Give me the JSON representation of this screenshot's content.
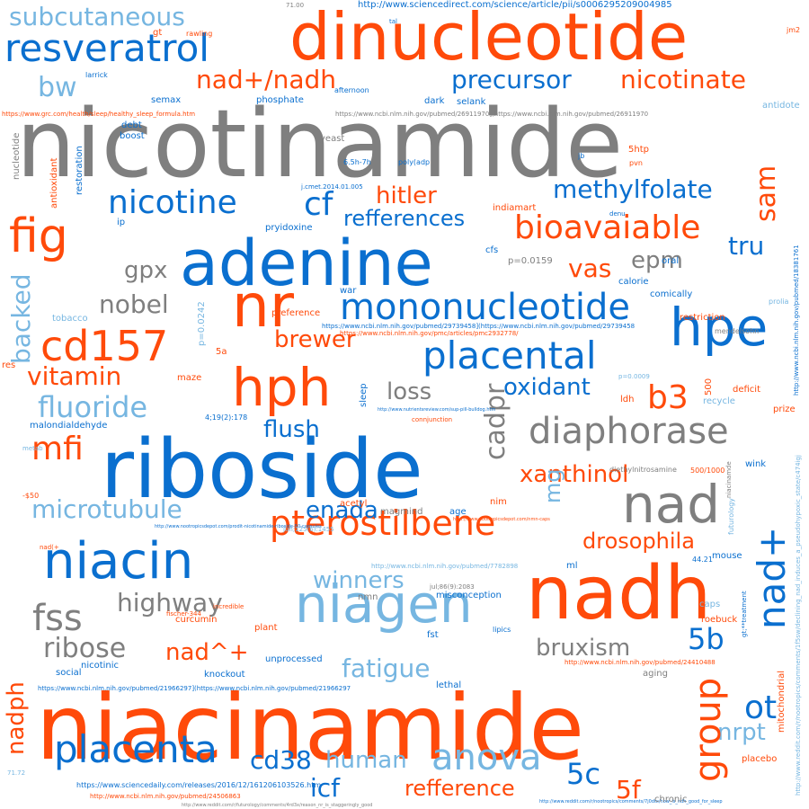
{
  "palette": {
    "gray": "#7f7f7f",
    "blue": "#0a6fcf",
    "lightblue": "#76b6e1",
    "orange": "#ff4a0a"
  },
  "words": [
    {
      "text": "nicotinamide",
      "color": "gray"
    },
    {
      "text": "riboside",
      "color": "blue"
    },
    {
      "text": "niacinamide",
      "color": "orange"
    },
    {
      "text": "dinucleotide",
      "color": "orange"
    },
    {
      "text": "adenine",
      "color": "blue"
    },
    {
      "text": "nadh",
      "color": "orange"
    },
    {
      "text": "nr",
      "color": "orange"
    },
    {
      "text": "hph",
      "color": "orange"
    },
    {
      "text": "hpe",
      "color": "blue"
    },
    {
      "text": "niagen",
      "color": "lightblue"
    },
    {
      "text": "nad",
      "color": "gray"
    },
    {
      "text": "niacin",
      "color": "blue"
    },
    {
      "text": "fig",
      "color": "orange"
    },
    {
      "text": "cd157",
      "color": "orange"
    },
    {
      "text": "mononucleotide",
      "color": "blue"
    },
    {
      "text": "diaphorase",
      "color": "gray"
    },
    {
      "text": "placental",
      "color": "blue"
    },
    {
      "text": "resveratrol",
      "color": "blue"
    },
    {
      "text": "pterostilbene",
      "color": "orange"
    },
    {
      "text": "anova",
      "color": "lightblue"
    },
    {
      "text": "placenta",
      "color": "blue"
    },
    {
      "text": "nicotine",
      "color": "blue"
    },
    {
      "text": "bioavaiable",
      "color": "orange"
    },
    {
      "text": "fss",
      "color": "gray"
    },
    {
      "text": "cf",
      "color": "blue"
    },
    {
      "text": "mfi",
      "color": "orange"
    },
    {
      "text": "b3",
      "color": "orange"
    },
    {
      "text": "ot",
      "color": "blue"
    },
    {
      "text": "5b",
      "color": "blue"
    },
    {
      "text": "nad+/nadh",
      "color": "orange"
    },
    {
      "text": "precursor",
      "color": "blue"
    },
    {
      "text": "nicotinate",
      "color": "orange"
    },
    {
      "text": "methylfolate",
      "color": "blue"
    },
    {
      "text": "microtubule",
      "color": "lightblue"
    },
    {
      "text": "highway",
      "color": "gray"
    },
    {
      "text": "ribose",
      "color": "gray"
    },
    {
      "text": "fluoride",
      "color": "lightblue"
    },
    {
      "text": "vitamin",
      "color": "orange"
    },
    {
      "text": "oxidant",
      "color": "blue"
    },
    {
      "text": "xanthinol",
      "color": "orange"
    },
    {
      "text": "drosophila",
      "color": "orange"
    },
    {
      "text": "fatigue",
      "color": "lightblue"
    },
    {
      "text": "bruxism",
      "color": "gray"
    },
    {
      "text": "winners",
      "color": "lightblue"
    },
    {
      "text": "refferences",
      "color": "blue"
    },
    {
      "text": "refference",
      "color": "orange"
    },
    {
      "text": "subcutaneous",
      "color": "lightblue"
    },
    {
      "text": "hitler",
      "color": "orange"
    },
    {
      "text": "brewer",
      "color": "orange"
    },
    {
      "text": "vas",
      "color": "orange"
    },
    {
      "text": "epm",
      "color": "gray"
    },
    {
      "text": "gpx",
      "color": "gray"
    },
    {
      "text": "nobel",
      "color": "gray"
    },
    {
      "text": "loss",
      "color": "gray"
    },
    {
      "text": "flush",
      "color": "blue"
    },
    {
      "text": "enada",
      "color": "blue"
    },
    {
      "text": "nad^+",
      "color": "orange"
    },
    {
      "text": "cd38",
      "color": "blue"
    },
    {
      "text": "human",
      "color": "lightblue"
    },
    {
      "text": "icf",
      "color": "blue"
    },
    {
      "text": "5c",
      "color": "blue"
    },
    {
      "text": "5f",
      "color": "orange"
    },
    {
      "text": "tru",
      "color": "blue"
    },
    {
      "text": "bw",
      "color": "lightblue"
    },
    {
      "text": "nrpt",
      "color": "lightblue"
    },
    {
      "text": "nad+",
      "color": "blue"
    },
    {
      "text": "sam",
      "color": "orange"
    },
    {
      "text": "group",
      "color": "orange"
    },
    {
      "text": "cadpr",
      "color": "gray"
    },
    {
      "text": "backed",
      "color": "lightblue"
    },
    {
      "text": "nadph",
      "color": "orange"
    },
    {
      "text": "mg",
      "color": "lightblue"
    },
    {
      "text": "http://www.sciencedirect.com/science/article/pii/s0006295209004985",
      "color": "blue"
    },
    {
      "text": "https://www.grc.com/health/sleep/healthy_sleep_formula.htm",
      "color": "orange"
    },
    {
      "text": "https://www.ncbi.nlm.nih.gov/pubmed/26911970](https://www.ncbi.nlm.nih.gov/pubmed/26911970",
      "color": "gray"
    },
    {
      "text": "https://www.ncbi.nlm.nih.gov/pubmed/29739458](https://www.ncbi.nlm.nih.gov/pubmed/29739458",
      "color": "blue"
    },
    {
      "text": "https://www.ncbi.nlm.nih.gov/pmc/articles/pmc2932778/",
      "color": "orange"
    },
    {
      "text": "https://www.ncbi.nlm.nih.gov/pubmed/21966297](https://www.ncbi.nlm.nih.gov/pubmed/21966297",
      "color": "blue"
    },
    {
      "text": "http://www.ncbi.nlm.nih.gov/pubmed/24410488",
      "color": "orange"
    },
    {
      "text": "https://www.sciencedaily.com/releases/2016/12/161206103526.htm",
      "color": "blue"
    },
    {
      "text": "http://www.ncbi.nlm.nih.gov/pubmed/24506863",
      "color": "orange"
    },
    {
      "text": "http://www.ncbi.nlm.nih.gov/pubmed/7782898",
      "color": "lightblue"
    },
    {
      "text": "http://www.ncbi.nlm.nih.gov/pubmed/18381761",
      "color": "blue"
    },
    {
      "text": "http://www.reddit.com/r/nootropics/comments/1f5sw/declining_nad_induces_a_pseudohypoxic_state/c474igj",
      "color": "lightblue"
    },
    {
      "text": "http://www.nutrientsreview.com/sup-pill-bulldog.htm",
      "color": "blue"
    },
    {
      "text": "http://www.nootropicsdepot.com/nmn-caps",
      "color": "orange"
    },
    {
      "text": "http://www.nootropicsdepot.com/prodit-nicotinamide-riboside-50-capsules",
      "color": "blue"
    },
    {
      "text": "http://www.reddit.com/r/futurology/comments/4rd3x/reason_nr_is_staggeringly_good",
      "color": "gray"
    },
    {
      "text": "http://www.reddit.com/r/nootropics/comments/7j0dtx/how_is_ndh_good_for_sleep",
      "color": "blue"
    },
    {
      "text": "malondialdehyde",
      "color": "blue"
    },
    {
      "text": "curcumin",
      "color": "orange"
    },
    {
      "text": "semax",
      "color": "blue"
    },
    {
      "text": "phosphate",
      "color": "blue"
    },
    {
      "text": "selank",
      "color": "blue"
    },
    {
      "text": "dark",
      "color": "blue"
    },
    {
      "text": "boost",
      "color": "blue"
    },
    {
      "text": "debt",
      "color": "blue"
    },
    {
      "text": "yeast",
      "color": "gray"
    },
    {
      "text": "pryidoxine",
      "color": "blue"
    },
    {
      "text": "indiamart",
      "color": "orange"
    },
    {
      "text": "5htp",
      "color": "orange"
    },
    {
      "text": "oral",
      "color": "blue"
    },
    {
      "text": "calorie",
      "color": "blue"
    },
    {
      "text": "comically",
      "color": "blue"
    },
    {
      "text": "restriction",
      "color": "orange"
    },
    {
      "text": "preference",
      "color": "orange"
    },
    {
      "text": "war",
      "color": "blue"
    },
    {
      "text": "tobacco",
      "color": "lightblue"
    },
    {
      "text": "maze",
      "color": "orange"
    },
    {
      "text": "recycle",
      "color": "lightblue"
    },
    {
      "text": "deficit",
      "color": "orange"
    },
    {
      "text": "prize",
      "color": "orange"
    },
    {
      "text": "ldh",
      "color": "orange"
    },
    {
      "text": "wink",
      "color": "blue"
    },
    {
      "text": "age",
      "color": "blue"
    },
    {
      "text": "nim",
      "color": "orange"
    },
    {
      "text": "acetyl",
      "color": "orange"
    },
    {
      "text": "magmind",
      "color": "gray"
    },
    {
      "text": "mouse",
      "color": "blue"
    },
    {
      "text": "ml",
      "color": "blue"
    },
    {
      "text": "nmn",
      "color": "gray"
    },
    {
      "text": "misconception",
      "color": "blue"
    },
    {
      "text": "caps",
      "color": "lightblue"
    },
    {
      "text": "roebuck",
      "color": "orange"
    },
    {
      "text": "plant",
      "color": "orange"
    },
    {
      "text": "fst",
      "color": "blue"
    },
    {
      "text": "lethal",
      "color": "blue"
    },
    {
      "text": "unprocessed",
      "color": "blue"
    },
    {
      "text": "knockout",
      "color": "blue"
    },
    {
      "text": "nicotinic",
      "color": "blue"
    },
    {
      "text": "social",
      "color": "blue"
    },
    {
      "text": "aging",
      "color": "gray"
    },
    {
      "text": "placebo",
      "color": "orange"
    },
    {
      "text": "chronic",
      "color": "gray"
    },
    {
      "text": "lipics",
      "color": "blue"
    },
    {
      "text": "incredible",
      "color": "orange"
    },
    {
      "text": "fischer-344",
      "color": "orange"
    },
    {
      "text": "sleep",
      "color": "blue"
    },
    {
      "text": "antioxidant",
      "color": "orange"
    },
    {
      "text": "restoration",
      "color": "blue"
    },
    {
      "text": "nucleotide",
      "color": "gray"
    },
    {
      "text": "mitochondrial",
      "color": "orange"
    },
    {
      "text": "futurology",
      "color": "lightblue"
    },
    {
      "text": "antidote",
      "color": "lightblue"
    },
    {
      "text": "afternoon",
      "color": "blue"
    },
    {
      "text": "larrick",
      "color": "blue"
    },
    {
      "text": "gt",
      "color": "orange"
    },
    {
      "text": "rawling",
      "color": "orange"
    },
    {
      "text": "tal",
      "color": "blue"
    },
    {
      "text": "jb",
      "color": "blue"
    },
    {
      "text": "pvn",
      "color": "orange"
    },
    {
      "text": "denu",
      "color": "blue"
    },
    {
      "text": "ip",
      "color": "blue"
    },
    {
      "text": "cfs",
      "color": "blue"
    },
    {
      "text": "mendelsohn",
      "color": "gray"
    },
    {
      "text": "prolia",
      "color": "lightblue"
    },
    {
      "text": "res",
      "color": "orange"
    },
    {
      "text": "5a",
      "color": "orange"
    },
    {
      "text": "500",
      "color": "orange"
    },
    {
      "text": "500/1000",
      "color": "orange"
    },
    {
      "text": "metab",
      "color": "lightblue"
    },
    {
      "text": "-$50",
      "color": "orange"
    },
    {
      "text": "nad(+",
      "color": "orange"
    },
    {
      "text": "diethylnitrosamine",
      "color": "gray"
    },
    {
      "text": "niacinamde",
      "color": "gray"
    },
    {
      "text": "connjunction",
      "color": "orange"
    },
    {
      "text": "jm2",
      "color": "orange"
    },
    {
      "text": "71.00",
      "color": "gray"
    },
    {
      "text": "71.72",
      "color": "lightblue"
    },
    {
      "text": "44.21",
      "color": "blue"
    },
    {
      "text": "6.5h-7h",
      "color": "blue"
    },
    {
      "text": "poly(adp",
      "color": "blue"
    },
    {
      "text": "j.cmet.2014.01.005",
      "color": "blue"
    },
    {
      "text": "p=0.0159",
      "color": "gray"
    },
    {
      "text": "p=0.0242",
      "color": "lightblue"
    },
    {
      "text": "p=0.0009",
      "color": "lightblue"
    },
    {
      "text": "jun;125(6):1455",
      "color": "lightblue"
    },
    {
      "text": "4;19(2):178",
      "color": "blue"
    },
    {
      "text": "jul;86(9):2083",
      "color": "gray"
    },
    {
      "text": "gt;**treatment",
      "color": "blue"
    },
    {
      "text": "\\~8.5h",
      "color": "gray"
    },
    {
      "text": "0.0002",
      "color": "orange"
    }
  ]
}
